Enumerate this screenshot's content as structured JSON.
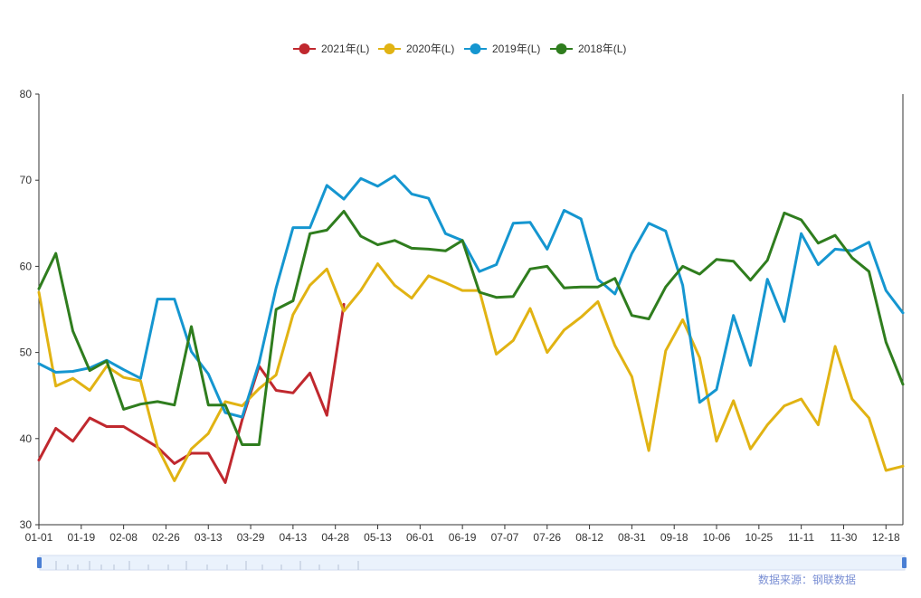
{
  "chart_data": {
    "type": "line",
    "title": "",
    "xlabel": "",
    "ylabel": "",
    "ylim": [
      30,
      80
    ],
    "yticks": [
      30,
      40,
      50,
      60,
      70,
      80
    ],
    "x_tick_labels": [
      "01-01",
      "01-19",
      "02-08",
      "02-26",
      "03-13",
      "03-29",
      "04-13",
      "04-28",
      "05-13",
      "06-01",
      "06-19",
      "07-07",
      "07-26",
      "08-12",
      "08-31",
      "09-18",
      "10-06",
      "10-25",
      "11-11",
      "11-30",
      "12-18"
    ],
    "legend_position": "top-center",
    "grid": false,
    "series": [
      {
        "name": "2021年(L)",
        "color": "#c0282e",
        "values": [
          37.5,
          41.2,
          39.7,
          42.4,
          41.4,
          41.4,
          40.2,
          39.0,
          37.1,
          38.3,
          38.3,
          34.9,
          42.2,
          48.4,
          45.6,
          45.3,
          47.6,
          42.7,
          55.6
        ]
      },
      {
        "name": "2020年(L)",
        "color": "#e1b313",
        "values": [
          57.0,
          46.1,
          47.0,
          45.6,
          48.4,
          47.1,
          46.7,
          39.0,
          35.1,
          38.8,
          40.6,
          44.3,
          43.8,
          45.8,
          47.4,
          54.4,
          57.8,
          59.7,
          54.8,
          57.2,
          60.3,
          57.8,
          56.3,
          58.9,
          58.1,
          57.2,
          57.2,
          49.8,
          51.4,
          55.1,
          50.0,
          52.6,
          54.1,
          55.9,
          50.8,
          47.2,
          38.6,
          50.2,
          53.8,
          49.4,
          39.7,
          44.4,
          38.8,
          41.6,
          43.8,
          44.6,
          41.6,
          50.7,
          44.6,
          42.4,
          36.3,
          36.8
        ]
      },
      {
        "name": "2019年(L)",
        "color": "#1596d0",
        "values": [
          48.7,
          47.7,
          47.8,
          48.2,
          49.1,
          48.0,
          47.0,
          56.2,
          56.2,
          50.1,
          47.5,
          43.0,
          42.5,
          48.8,
          57.5,
          64.5,
          64.5,
          69.4,
          67.8,
          70.2,
          69.3,
          70.5,
          68.4,
          67.9,
          63.8,
          63.0,
          59.4,
          60.2,
          65.0,
          65.1,
          62.0,
          66.5,
          65.5,
          58.5,
          56.8,
          61.5,
          65.0,
          64.1,
          57.8,
          44.2,
          45.7,
          54.3,
          48.5,
          58.5,
          53.6,
          63.8,
          60.2,
          62.0,
          61.8,
          62.8,
          57.2,
          54.6
        ]
      },
      {
        "name": "2018年(L)",
        "color": "#2f7d1e",
        "values": [
          57.4,
          61.5,
          52.5,
          47.9,
          49.0,
          43.4,
          44.0,
          44.3,
          43.9,
          53.0,
          43.9,
          43.9,
          39.3,
          39.3,
          55.0,
          56.0,
          63.8,
          64.2,
          66.4,
          63.5,
          62.5,
          63.0,
          62.1,
          62.0,
          61.8,
          63.0,
          57.0,
          56.4,
          56.5,
          59.7,
          60.0,
          57.5,
          57.6,
          57.6,
          58.6,
          54.3,
          53.9,
          57.6,
          60.0,
          59.1,
          60.8,
          60.6,
          58.4,
          60.7,
          66.2,
          65.4,
          62.7,
          63.6,
          61.0,
          59.4,
          51.2,
          46.3
        ]
      }
    ]
  },
  "source_note": "数据来源：钢联数据"
}
